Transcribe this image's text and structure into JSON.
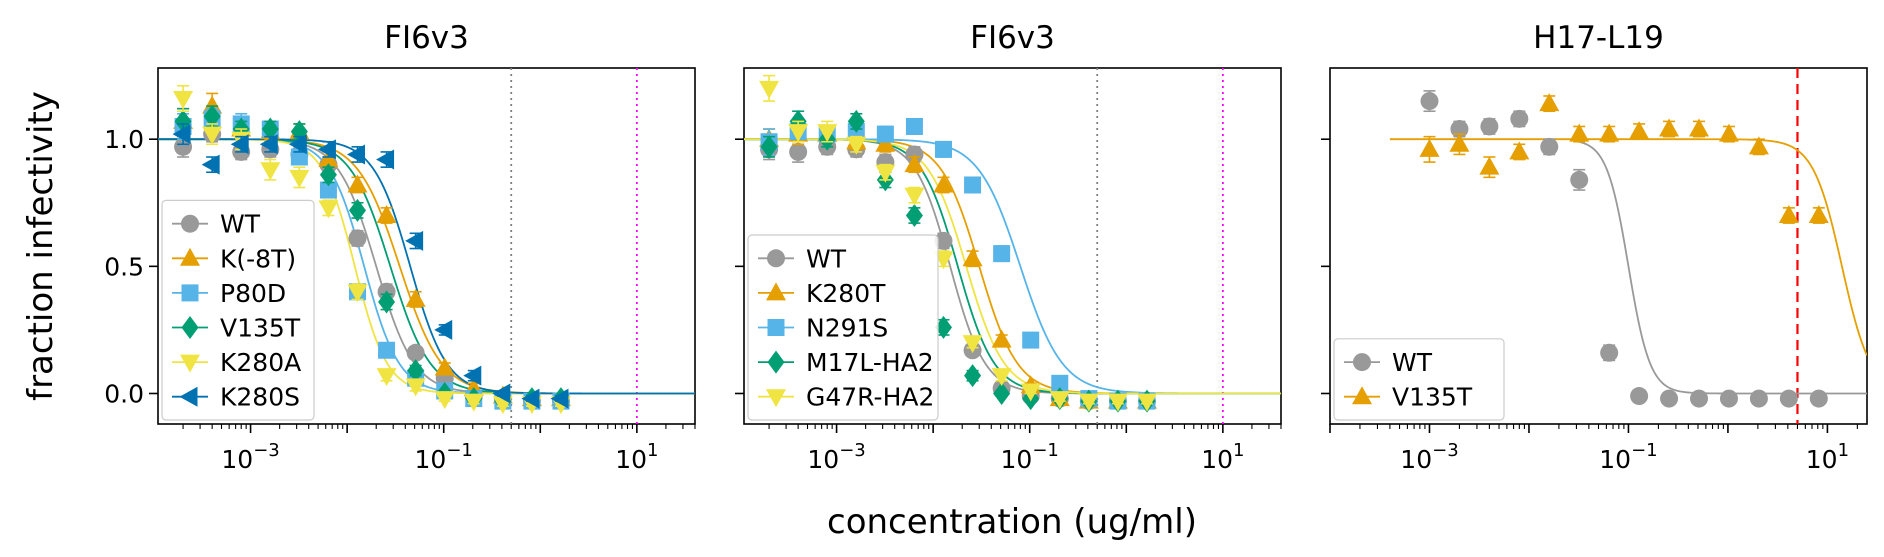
{
  "figure": {
    "xlabel": "concentration (ug/ml)",
    "ylabel": "fraction infectivity"
  },
  "chart_data": [
    {
      "type": "line",
      "title": "FI6v3",
      "xscale": "log",
      "xlim": [
        0.00011,
        40
      ],
      "ylim": [
        -0.12,
        1.28
      ],
      "yticks": [
        0.0,
        0.5,
        1.0
      ],
      "ytick_labels": [
        "0.0",
        "0.5",
        "1.0"
      ],
      "xticks": [
        0.001,
        0.1,
        10
      ],
      "xtick_labels": [
        "10^-3",
        "10^-1",
        "10^1"
      ],
      "grid": false,
      "legend_position": "lower-left",
      "vlines": [
        {
          "x": 0.5,
          "style": "dotted",
          "color": "#808080"
        },
        {
          "x": 10,
          "style": "dotted",
          "color": "#ff00ff"
        }
      ],
      "series": [
        {
          "name": "WT",
          "color": "#999999",
          "marker": "circle",
          "ic50": 0.02,
          "hill": 2.2,
          "x": [
            0.0002,
            0.0004,
            0.0008,
            0.0016,
            0.0032,
            0.0064,
            0.0128,
            0.0256,
            0.0512,
            0.1024,
            0.2048,
            0.4096,
            0.8192,
            1.638
          ],
          "y": [
            0.97,
            1.02,
            0.95,
            0.96,
            0.94,
            0.9,
            0.61,
            0.4,
            0.16,
            0.06,
            -0.01,
            -0.02,
            -0.03,
            -0.03
          ],
          "err": [
            0.04,
            0.03,
            0.03,
            0.03,
            0.03,
            0.03,
            0.03,
            0.03,
            0.02,
            0.02,
            0.01,
            0.01,
            0.01,
            0.01
          ]
        },
        {
          "name": "K(-8T)",
          "color": "#E69F00",
          "marker": "triangle-up",
          "ic50": 0.035,
          "hill": 2.0,
          "x": [
            0.0002,
            0.0004,
            0.0008,
            0.0016,
            0.0032,
            0.0064,
            0.0128,
            0.0256,
            0.0512,
            0.1024,
            0.2048,
            0.4096,
            0.8192,
            1.638
          ],
          "y": [
            1.07,
            1.13,
            1.04,
            1.03,
            1.03,
            0.92,
            0.82,
            0.7,
            0.37,
            0.1,
            0.02,
            -0.01,
            -0.02,
            -0.02
          ],
          "err": [
            0.05,
            0.05,
            0.04,
            0.03,
            0.03,
            0.03,
            0.03,
            0.03,
            0.03,
            0.02,
            0.02,
            0.01,
            0.01,
            0.01
          ]
        },
        {
          "name": "P80D",
          "color": "#56B4E9",
          "marker": "square",
          "ic50": 0.015,
          "hill": 2.4,
          "x": [
            0.0002,
            0.0004,
            0.0008,
            0.0016,
            0.0032,
            0.0064,
            0.0128,
            0.0256,
            0.0512,
            0.1024,
            0.2048,
            0.4096,
            0.8192,
            1.638
          ],
          "y": [
            1.05,
            1.08,
            1.06,
            1.04,
            0.93,
            0.8,
            0.4,
            0.17,
            0.06,
            0.01,
            -0.02,
            -0.03,
            -0.03,
            -0.03
          ],
          "err": [
            0.05,
            0.04,
            0.04,
            0.03,
            0.03,
            0.03,
            0.03,
            0.02,
            0.02,
            0.01,
            0.01,
            0.01,
            0.01,
            0.01
          ]
        },
        {
          "name": "V135T",
          "color": "#009E73",
          "marker": "diamond",
          "ic50": 0.028,
          "hill": 2.1,
          "x": [
            0.0002,
            0.0004,
            0.0008,
            0.0016,
            0.0032,
            0.0064,
            0.0128,
            0.0256,
            0.0512,
            0.1024,
            0.2048,
            0.4096,
            0.8192,
            1.638
          ],
          "y": [
            1.07,
            1.09,
            1.04,
            1.04,
            1.03,
            0.86,
            0.72,
            0.36,
            0.09,
            0.0,
            -0.02,
            -0.03,
            -0.02,
            -0.02
          ],
          "err": [
            0.05,
            0.04,
            0.03,
            0.03,
            0.03,
            0.03,
            0.03,
            0.03,
            0.02,
            0.01,
            0.01,
            0.01,
            0.01,
            0.01
          ]
        },
        {
          "name": "K280A",
          "color": "#F0E442",
          "marker": "triangle-down",
          "ic50": 0.012,
          "hill": 2.6,
          "x": [
            0.0002,
            0.0004,
            0.0008,
            0.0016,
            0.0032,
            0.0064,
            0.0128,
            0.0256,
            0.0512,
            0.1024,
            0.2048,
            0.4096,
            0.8192,
            1.638
          ],
          "y": [
            1.16,
            1.02,
            1.0,
            0.88,
            0.85,
            0.73,
            0.4,
            0.07,
            0.03,
            -0.02,
            -0.03,
            -0.04,
            -0.04,
            -0.04
          ],
          "err": [
            0.05,
            0.04,
            0.04,
            0.04,
            0.04,
            0.03,
            0.03,
            0.02,
            0.02,
            0.01,
            0.01,
            0.01,
            0.01,
            0.01
          ]
        },
        {
          "name": "K280S",
          "color": "#0072B2",
          "marker": "triangle-left",
          "ic50": 0.045,
          "hill": 2.3,
          "x": [
            0.0002,
            0.0004,
            0.0008,
            0.0016,
            0.0032,
            0.0064,
            0.0128,
            0.0256,
            0.0512,
            0.1024,
            0.2048,
            0.4096,
            0.8192,
            1.638
          ],
          "y": [
            1.02,
            0.9,
            0.98,
            0.98,
            0.98,
            0.96,
            0.94,
            0.92,
            0.6,
            0.25,
            0.07,
            0.0,
            -0.02,
            -0.02
          ],
          "err": [
            0.04,
            0.03,
            0.03,
            0.03,
            0.03,
            0.03,
            0.03,
            0.03,
            0.03,
            0.02,
            0.02,
            0.01,
            0.01,
            0.01
          ]
        }
      ]
    },
    {
      "type": "line",
      "title": "FI6v3",
      "xscale": "log",
      "xlim": [
        0.00011,
        40
      ],
      "ylim": [
        -0.12,
        1.28
      ],
      "yticks": [
        0.0,
        0.5,
        1.0
      ],
      "ytick_labels": [
        "",
        "",
        ""
      ],
      "xticks": [
        0.001,
        0.1,
        10
      ],
      "xtick_labels": [
        "10^-3",
        "10^-1",
        "10^1"
      ],
      "grid": false,
      "legend_position": "lower-left",
      "vlines": [
        {
          "x": 0.5,
          "style": "dotted",
          "color": "#808080"
        },
        {
          "x": 10,
          "style": "dotted",
          "color": "#ff00ff"
        }
      ],
      "series": [
        {
          "name": "WT",
          "color": "#999999",
          "marker": "circle",
          "ic50": 0.015,
          "hill": 2.4,
          "x": [
            0.0002,
            0.0004,
            0.0008,
            0.0016,
            0.0032,
            0.0064,
            0.0128,
            0.0256,
            0.0512,
            0.1024,
            0.2048,
            0.4096,
            0.8192,
            1.638
          ],
          "y": [
            0.96,
            0.95,
            0.97,
            0.96,
            0.91,
            0.94,
            0.6,
            0.17,
            0.02,
            -0.01,
            -0.02,
            -0.03,
            -0.03,
            -0.03
          ],
          "err": [
            0.04,
            0.04,
            0.03,
            0.03,
            0.03,
            0.03,
            0.03,
            0.02,
            0.01,
            0.01,
            0.01,
            0.01,
            0.01,
            0.01
          ]
        },
        {
          "name": "K280T",
          "color": "#E69F00",
          "marker": "triangle-up",
          "ic50": 0.03,
          "hill": 2.2,
          "x": [
            0.0002,
            0.0004,
            0.0008,
            0.0016,
            0.0032,
            0.0064,
            0.0128,
            0.0256,
            0.0512,
            0.1024,
            0.2048,
            0.4096,
            0.8192,
            1.638
          ],
          "y": [
            1.0,
            1.02,
            1.02,
            0.99,
            0.98,
            0.9,
            0.82,
            0.53,
            0.21,
            0.03,
            -0.02,
            -0.03,
            -0.03,
            -0.03
          ],
          "err": [
            0.04,
            0.04,
            0.03,
            0.03,
            0.03,
            0.03,
            0.03,
            0.03,
            0.02,
            0.01,
            0.01,
            0.01,
            0.01,
            0.01
          ]
        },
        {
          "name": "N291S",
          "color": "#56B4E9",
          "marker": "square",
          "ic50": 0.08,
          "hill": 2.0,
          "x": [
            0.0002,
            0.0004,
            0.0008,
            0.0016,
            0.0032,
            0.0064,
            0.0128,
            0.0256,
            0.0512,
            0.1024,
            0.2048,
            0.4096,
            0.8192,
            1.638
          ],
          "y": [
            0.99,
            1.03,
            1.02,
            1.03,
            1.02,
            1.05,
            0.96,
            0.82,
            0.55,
            0.21,
            0.04,
            -0.02,
            -0.03,
            -0.03
          ],
          "err": [
            0.05,
            0.04,
            0.03,
            0.03,
            0.03,
            0.03,
            0.03,
            0.03,
            0.03,
            0.02,
            0.02,
            0.01,
            0.01,
            0.01
          ]
        },
        {
          "name": "M17L-HA2",
          "color": "#009E73",
          "marker": "diamond",
          "ic50": 0.018,
          "hill": 2.3,
          "x": [
            0.0002,
            0.0004,
            0.0008,
            0.0016,
            0.0032,
            0.0064,
            0.0128,
            0.0256,
            0.0512,
            0.1024,
            0.2048,
            0.4096,
            0.8192,
            1.638
          ],
          "y": [
            0.97,
            1.07,
            1.0,
            1.07,
            0.84,
            0.7,
            0.26,
            0.07,
            0.0,
            -0.02,
            -0.02,
            -0.03,
            -0.03,
            -0.03
          ],
          "err": [
            0.04,
            0.04,
            0.03,
            0.03,
            0.03,
            0.03,
            0.03,
            0.02,
            0.01,
            0.01,
            0.01,
            0.01,
            0.01,
            0.01
          ]
        },
        {
          "name": "G47R-HA2",
          "color": "#F0E442",
          "marker": "triangle-down",
          "ic50": 0.022,
          "hill": 2.2,
          "x": [
            0.0002,
            0.0004,
            0.0008,
            0.0016,
            0.0032,
            0.0064,
            0.0128,
            0.0256,
            0.0512,
            0.1024,
            0.2048,
            0.4096,
            0.8192,
            1.638
          ],
          "y": [
            1.2,
            1.03,
            1.03,
            0.98,
            0.87,
            0.78,
            0.53,
            0.2,
            0.07,
            0.01,
            -0.02,
            -0.03,
            -0.03,
            -0.03
          ],
          "err": [
            0.05,
            0.04,
            0.04,
            0.03,
            0.03,
            0.03,
            0.03,
            0.02,
            0.02,
            0.01,
            0.01,
            0.01,
            0.01,
            0.01
          ]
        }
      ]
    },
    {
      "type": "line",
      "title": "H17-L19",
      "xscale": "log",
      "xlim": [
        0.0001,
        25
      ],
      "ylim": [
        -0.12,
        1.28
      ],
      "yticks": [
        0.0,
        0.5,
        1.0
      ],
      "ytick_labels": [
        "",
        "",
        ""
      ],
      "xticks": [
        0.001,
        0.1,
        10
      ],
      "xtick_labels": [
        "10^-3",
        "10^-1",
        "10^1"
      ],
      "grid": false,
      "legend_position": "lower-left",
      "vlines": [
        {
          "x": 5,
          "style": "dashed",
          "color": "#ff0000"
        }
      ],
      "series": [
        {
          "name": "WT",
          "color": "#999999",
          "marker": "circle",
          "ic50": 0.1,
          "hill": 4.0,
          "fit_range": [
            0.03,
            25
          ],
          "x": [
            0.001,
            0.002,
            0.004,
            0.008,
            0.016,
            0.032,
            0.064,
            0.128,
            0.256,
            0.512,
            1.024,
            2.048,
            4.096,
            8.192
          ],
          "y": [
            1.15,
            1.04,
            1.05,
            1.08,
            0.97,
            0.84,
            0.16,
            -0.01,
            -0.02,
            -0.02,
            -0.02,
            -0.02,
            -0.02,
            -0.02
          ],
          "err": [
            0.04,
            0.03,
            0.03,
            0.03,
            0.03,
            0.04,
            0.03,
            0.01,
            0.01,
            0.01,
            0.01,
            0.01,
            0.01,
            0.01
          ]
        },
        {
          "name": "V135T",
          "color": "#E69F00",
          "marker": "triangle-up",
          "ic50": 14,
          "hill": 3.0,
          "fit_range": [
            0.0004,
            25
          ],
          "x": [
            0.001,
            0.002,
            0.004,
            0.008,
            0.016,
            0.032,
            0.064,
            0.128,
            0.256,
            0.512,
            1.024,
            2.048,
            4.096,
            8.192
          ],
          "y": [
            0.96,
            0.98,
            0.89,
            0.95,
            1.14,
            1.02,
            1.02,
            1.03,
            1.04,
            1.04,
            1.02,
            0.97,
            0.7,
            0.7
          ],
          "err": [
            0.05,
            0.04,
            0.04,
            0.03,
            0.03,
            0.03,
            0.03,
            0.03,
            0.03,
            0.03,
            0.03,
            0.03,
            0.03,
            0.03
          ]
        }
      ]
    }
  ]
}
